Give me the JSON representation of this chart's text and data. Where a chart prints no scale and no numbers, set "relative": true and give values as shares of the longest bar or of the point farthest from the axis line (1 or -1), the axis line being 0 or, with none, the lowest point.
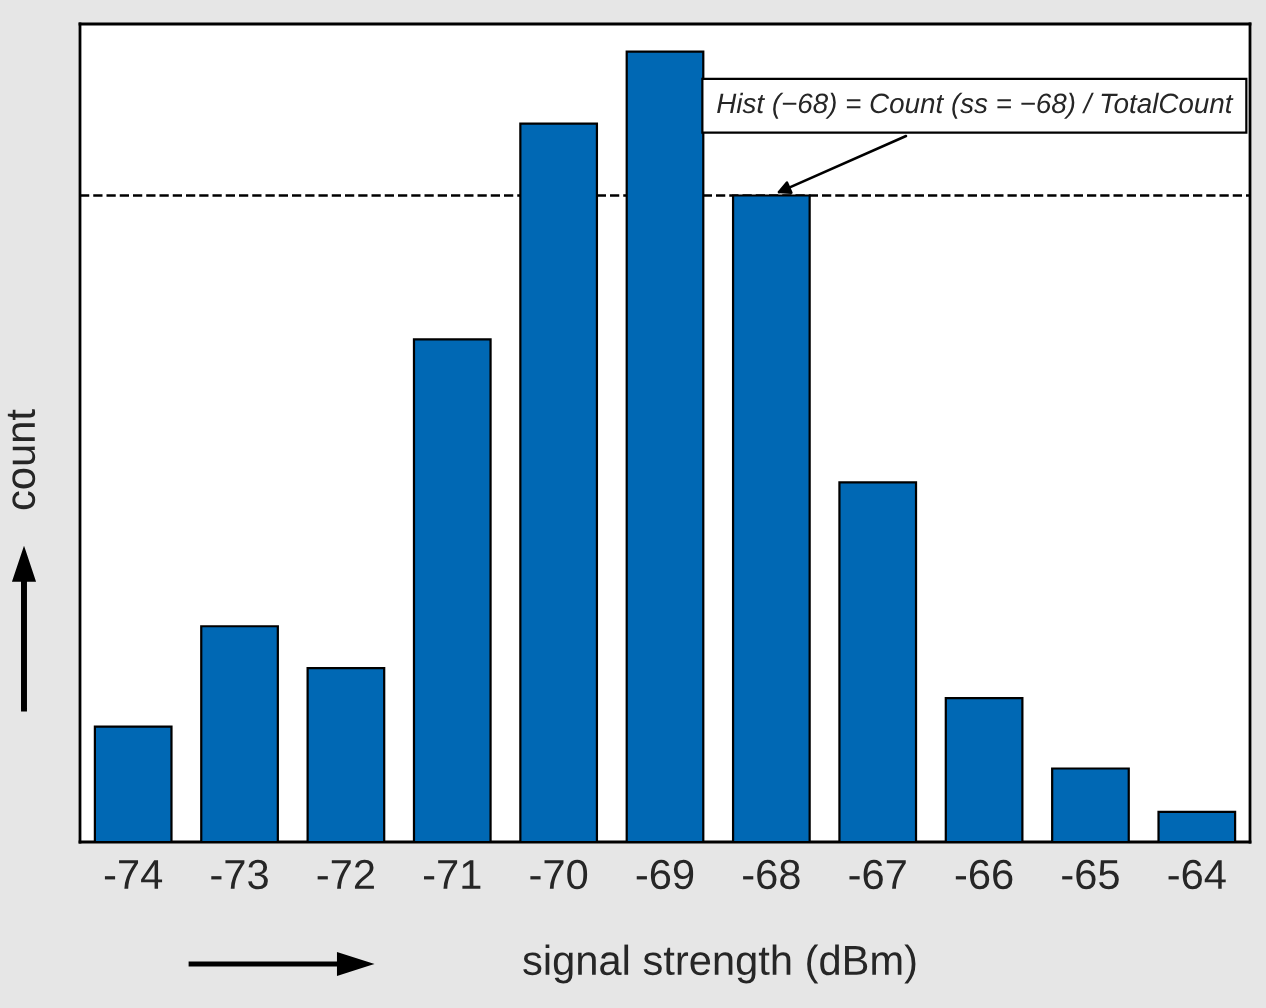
{
  "chart_data": {
    "type": "bar",
    "relative": true,
    "xlabel": "signal strength (dBm)",
    "ylabel": "count",
    "categories": [
      "-74",
      "-73",
      "-72",
      "-71",
      "-70",
      "-69",
      "-68",
      "-67",
      "-66",
      "-65",
      "-64"
    ],
    "values": [
      0.146,
      0.273,
      0.22,
      0.636,
      0.909,
      1,
      0.818,
      0.455,
      0.182,
      0.093,
      0.038
    ],
    "color": "#0068b4",
    "ref_lines": [
      {
        "axis": "y",
        "value": 0.818,
        "line_style": "dashed",
        "color": "#000000"
      }
    ],
    "annotations": [
      {
        "text": "Hist (−68) = Count (ss = −68) / TotalCount",
        "x": "-68",
        "y": 0.818
      }
    ],
    "grid": false
  }
}
